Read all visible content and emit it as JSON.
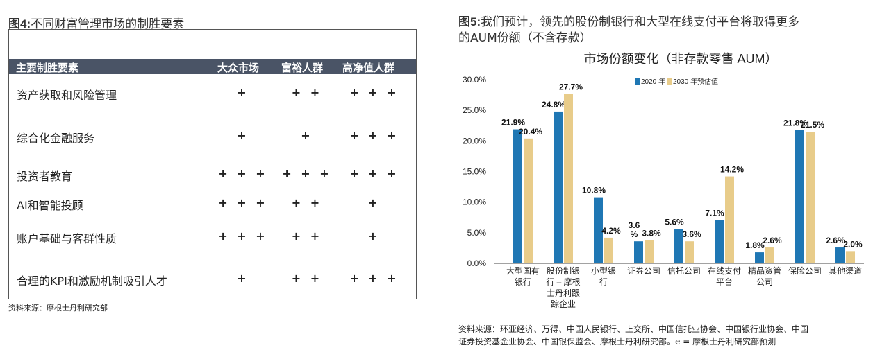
{
  "left": {
    "title_prefix": "图4:",
    "title": "不同财富管理市场的制胜要素",
    "headers": [
      "主要制胜要素",
      "大众市场",
      "富裕人群",
      "高净值人群"
    ],
    "rows": [
      {
        "factor": "资产获取和风险管理",
        "mass": "+",
        "affluent": "+ +",
        "hnw": "+ + +"
      },
      {
        "factor": "综合化金融服务",
        "mass": "+",
        "affluent": "+",
        "hnw": "+ + +"
      },
      {
        "factor": "投资者教育",
        "mass": "+ + +",
        "affluent": "+ + +",
        "hnw": "+ + +"
      },
      {
        "factor": "AI和智能投顾",
        "mass": "+ + +",
        "affluent": "+ +",
        "hnw": "+"
      },
      {
        "factor": "账户基础与客群性质",
        "mass": "+ + +",
        "affluent": "+ +",
        "hnw": "+"
      },
      {
        "factor": "合理的KPI和激励机制吸引人才",
        "mass": "+",
        "affluent": "+ +",
        "hnw": "+ + +"
      }
    ],
    "source": "资料来源：摩根士丹利研究部"
  },
  "right": {
    "title_prefix": "图5:",
    "title_line1": "我们预计，领先的股份制银行和大型在线支付平台将取得更多",
    "title_line2": "的AUM份额（不含存款）",
    "source_line1": "资料来源：环亚经济、万得、中国人民银行、上交所、中国信托业协会、中国银行业协会、中国",
    "source_line2": "证券投资基金业协会、中国银保监会、摩根士丹利研究部。e = 摩根士丹利研究部预测"
  },
  "chart_data": {
    "type": "bar",
    "title": "市场份额变化（非存款零售 AUM）",
    "categories": [
      [
        "大型国有",
        "银行"
      ],
      [
        "股份制银",
        "行 – 摩根",
        "士丹利跟",
        "踪企业"
      ],
      [
        "小型银",
        "行"
      ],
      [
        "证券公司"
      ],
      [
        "信托公司"
      ],
      [
        "在线支付",
        "平台"
      ],
      [
        "精品资管",
        "公司"
      ],
      [
        "保险公司"
      ],
      [
        "其他渠道"
      ]
    ],
    "series": [
      {
        "name": "2020 年",
        "color": "#1f77b4",
        "values": [
          21.9,
          24.8,
          10.8,
          3.6,
          5.6,
          7.1,
          1.8,
          21.8,
          2.6
        ],
        "labels": [
          "21.9%",
          "24.8%",
          "10.8%",
          "3.6\n%",
          "5.6%",
          "7.1%",
          "1.8%",
          "21.8%",
          "2.6%"
        ]
      },
      {
        "name": "2030 年预估值",
        "color": "#e8cc8a",
        "values": [
          20.4,
          27.7,
          4.2,
          3.8,
          3.6,
          14.2,
          2.6,
          21.5,
          2.0
        ],
        "labels": [
          "20.4%",
          "27.7%",
          "4.2%",
          "3.8%",
          "3.6%",
          "14.2%",
          "2.6%",
          "21.5%",
          "2.0%"
        ]
      }
    ],
    "yticks": [
      "0.0%",
      "5.0%",
      "10.0%",
      "15.0%",
      "20.0%",
      "25.0%",
      "30.0%"
    ],
    "ylim": [
      0,
      30
    ],
    "legend": "top-center"
  }
}
